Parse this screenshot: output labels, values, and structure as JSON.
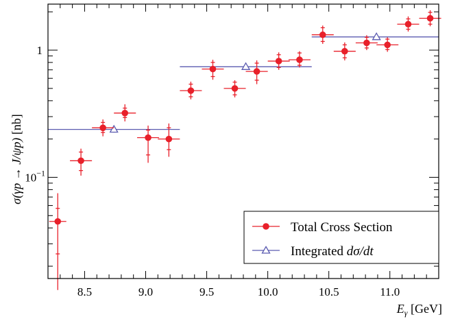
{
  "chart_data": {
    "type": "scatter",
    "xlabel_main": "E",
    "xlabel_sub": "γ",
    "xlabel_unit": " [GeV]",
    "ylabel_sigma": "σ(",
    "ylabel_process": "γp → J/ψp",
    "ylabel_close": ")",
    "ylabel_unit": " [nb]",
    "xlim": [
      8.2,
      11.4
    ],
    "ylim": [
      0.016,
      2.3
    ],
    "yscale": "log",
    "x_ticks": [
      {
        "value": 8.5,
        "label": "8.5"
      },
      {
        "value": 9.0,
        "label": "9.0"
      },
      {
        "value": 9.5,
        "label": "9.5"
      },
      {
        "value": 10.0,
        "label": "10.0"
      },
      {
        "value": 10.5,
        "label": "10.5"
      },
      {
        "value": 11.0,
        "label": "11.0"
      }
    ],
    "y_ticks": [
      {
        "value": 0.1,
        "base": "10",
        "exp": "−1"
      },
      {
        "value": 1,
        "base": "1",
        "exp": ""
      }
    ],
    "legend": {
      "position": "bottom-right",
      "entries": [
        {
          "label": "Total Cross Section",
          "series": "total"
        },
        {
          "label_plain": "Integrated ",
          "label_italic": "dσ/dt",
          "series": "integrated"
        }
      ]
    },
    "series": [
      {
        "key": "total",
        "name": "Total Cross Section",
        "color": "#e8202a",
        "marker": "circle",
        "points": [
          {
            "x": 8.28,
            "xerr": 0.07,
            "y": 0.045,
            "ylo": 0.013,
            "yhi": 0.075,
            "ylo2": 0.025,
            "yhi2": 0.057
          },
          {
            "x": 8.47,
            "xerr": 0.09,
            "y": 0.135,
            "ylo": 0.103,
            "yhi": 0.168,
            "ylo2": 0.113,
            "yhi2": 0.158
          },
          {
            "x": 8.65,
            "xerr": 0.09,
            "y": 0.245,
            "ylo": 0.21,
            "yhi": 0.285,
            "ylo2": 0.225,
            "yhi2": 0.27
          },
          {
            "x": 8.83,
            "xerr": 0.09,
            "y": 0.32,
            "ylo": 0.275,
            "yhi": 0.375,
            "ylo2": 0.295,
            "yhi2": 0.35
          },
          {
            "x": 9.02,
            "xerr": 0.09,
            "y": 0.205,
            "ylo": 0.13,
            "yhi": 0.255,
            "ylo2": 0.15,
            "yhi2": 0.235
          },
          {
            "x": 9.19,
            "xerr": 0.09,
            "y": 0.2,
            "ylo": 0.145,
            "yhi": 0.265,
            "ylo2": 0.165,
            "yhi2": 0.245
          },
          {
            "x": 9.37,
            "xerr": 0.09,
            "y": 0.48,
            "ylo": 0.41,
            "yhi": 0.565,
            "ylo2": 0.43,
            "yhi2": 0.54
          },
          {
            "x": 9.55,
            "xerr": 0.09,
            "y": 0.71,
            "ylo": 0.585,
            "yhi": 0.84,
            "ylo2": 0.62,
            "yhi2": 0.8
          },
          {
            "x": 9.73,
            "xerr": 0.09,
            "y": 0.5,
            "ylo": 0.425,
            "yhi": 0.58,
            "ylo2": 0.445,
            "yhi2": 0.56
          },
          {
            "x": 9.91,
            "xerr": 0.09,
            "y": 0.68,
            "ylo": 0.54,
            "yhi": 0.83,
            "ylo2": 0.58,
            "yhi2": 0.79
          },
          {
            "x": 10.09,
            "xerr": 0.09,
            "y": 0.82,
            "ylo": 0.7,
            "yhi": 0.96,
            "ylo2": 0.73,
            "yhi2": 0.92
          },
          {
            "x": 10.26,
            "xerr": 0.09,
            "y": 0.84,
            "ylo": 0.73,
            "yhi": 0.98,
            "ylo2": 0.76,
            "yhi2": 0.95
          },
          {
            "x": 10.45,
            "xerr": 0.09,
            "y": 1.32,
            "ylo": 1.12,
            "yhi": 1.56,
            "ylo2": 1.17,
            "yhi2": 1.5
          },
          {
            "x": 10.63,
            "xerr": 0.09,
            "y": 0.98,
            "ylo": 0.83,
            "yhi": 1.15,
            "ylo2": 0.87,
            "yhi2": 1.1
          },
          {
            "x": 10.81,
            "xerr": 0.09,
            "y": 1.14,
            "ylo": 1.0,
            "yhi": 1.31,
            "ylo2": 1.04,
            "yhi2": 1.26
          },
          {
            "x": 10.98,
            "xerr": 0.09,
            "y": 1.1,
            "ylo": 0.97,
            "yhi": 1.26,
            "ylo2": 1.01,
            "yhi2": 1.22
          },
          {
            "x": 11.15,
            "xerr": 0.09,
            "y": 1.6,
            "ylo": 1.4,
            "yhi": 1.84,
            "ylo2": 1.46,
            "yhi2": 1.76
          },
          {
            "x": 11.33,
            "xerr": 0.09,
            "y": 1.78,
            "ylo": 1.54,
            "yhi": 2.06,
            "ylo2": 1.6,
            "yhi2": 1.98
          }
        ]
      },
      {
        "key": "integrated",
        "name": "Integrated dσ/dt",
        "color": "#5b5bb0",
        "marker": "open-triangle",
        "points": [
          {
            "x": 8.74,
            "xlo": 8.2,
            "xhi": 9.28,
            "y": 0.238,
            "ylo": 0.225,
            "yhi": 0.252
          },
          {
            "x": 9.82,
            "xlo": 9.28,
            "xhi": 10.36,
            "y": 0.74,
            "ylo": 0.71,
            "yhi": 0.77
          },
          {
            "x": 10.89,
            "xlo": 10.36,
            "xhi": 11.4,
            "y": 1.27,
            "ylo": 1.23,
            "yhi": 1.31
          }
        ]
      }
    ]
  }
}
